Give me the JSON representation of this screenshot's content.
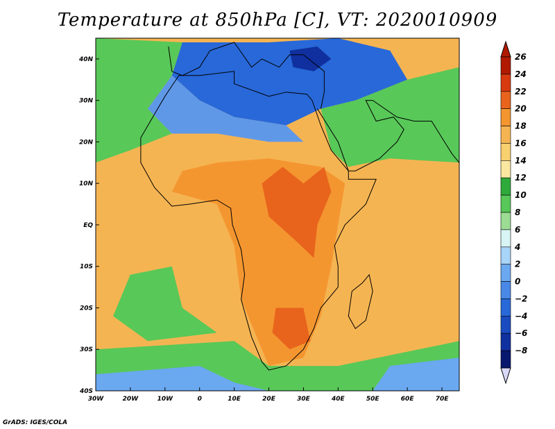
{
  "title": "Temperature at 850hPa [C], VT: 2020010909",
  "credit": "GrADS: IGES/COLA",
  "map": {
    "lon_range": [
      -30,
      75
    ],
    "lat_range": [
      -40,
      45
    ],
    "lon_ticks": [
      {
        "lon": -30,
        "label": "30W"
      },
      {
        "lon": -20,
        "label": "20W"
      },
      {
        "lon": -10,
        "label": "10W"
      },
      {
        "lon": 0,
        "label": "0"
      },
      {
        "lon": 10,
        "label": "10E"
      },
      {
        "lon": 20,
        "label": "20E"
      },
      {
        "lon": 30,
        "label": "30E"
      },
      {
        "lon": 40,
        "label": "40E"
      },
      {
        "lon": 50,
        "label": "50E"
      },
      {
        "lon": 60,
        "label": "60E"
      },
      {
        "lon": 70,
        "label": "70E"
      }
    ],
    "lat_ticks": [
      {
        "lat": 40,
        "label": "40N"
      },
      {
        "lat": 30,
        "label": "30N"
      },
      {
        "lat": 20,
        "label": "20N"
      },
      {
        "lat": 10,
        "label": "10N"
      },
      {
        "lat": 0,
        "label": "EQ"
      },
      {
        "lat": -10,
        "label": "10S"
      },
      {
        "lat": -20,
        "label": "20S"
      },
      {
        "lat": -30,
        "label": "30S"
      },
      {
        "lat": -40,
        "label": "40S"
      }
    ],
    "regions": [
      {
        "name": "cold-mediterranean",
        "color": "#2868d8",
        "lonlat": [
          [
            -5,
            44
          ],
          [
            20,
            44
          ],
          [
            40,
            45
          ],
          [
            55,
            42
          ],
          [
            60,
            35
          ],
          [
            45,
            30
          ],
          [
            35,
            28
          ],
          [
            25,
            24
          ],
          [
            10,
            26
          ],
          [
            0,
            30
          ],
          [
            -8,
            36
          ]
        ]
      },
      {
        "name": "deep-cold-aegean",
        "color": "#1030a0",
        "lonlat": [
          [
            26,
            42
          ],
          [
            34,
            43
          ],
          [
            38,
            40
          ],
          [
            33,
            37
          ],
          [
            27,
            38
          ]
        ]
      },
      {
        "name": "sahara-cool",
        "color": "#6098e8",
        "lonlat": [
          [
            -8,
            36
          ],
          [
            0,
            30
          ],
          [
            10,
            26
          ],
          [
            25,
            24
          ],
          [
            30,
            20
          ],
          [
            20,
            20
          ],
          [
            5,
            22
          ],
          [
            -8,
            22
          ],
          [
            -15,
            28
          ]
        ]
      },
      {
        "name": "north-atlantic-green",
        "color": "#58c858",
        "lonlat": [
          [
            -30,
            45
          ],
          [
            -5,
            44
          ],
          [
            -8,
            36
          ],
          [
            -15,
            28
          ],
          [
            -8,
            22
          ],
          [
            -20,
            18
          ],
          [
            -30,
            15
          ]
        ]
      },
      {
        "name": "arabia-green",
        "color": "#58c858",
        "lonlat": [
          [
            35,
            28
          ],
          [
            45,
            30
          ],
          [
            60,
            35
          ],
          [
            75,
            38
          ],
          [
            75,
            15
          ],
          [
            55,
            16
          ],
          [
            43,
            14
          ],
          [
            38,
            18
          ]
        ]
      },
      {
        "name": "sahel-warm",
        "color": "#f5b452",
        "lonlat": [
          [
            -20,
            18
          ],
          [
            -8,
            22
          ],
          [
            5,
            22
          ],
          [
            20,
            20
          ],
          [
            30,
            20
          ],
          [
            38,
            18
          ],
          [
            43,
            14
          ],
          [
            55,
            10
          ],
          [
            75,
            10
          ],
          [
            75,
            -40
          ],
          [
            -30,
            -40
          ],
          [
            -30,
            15
          ]
        ]
      },
      {
        "name": "central-africa-hot",
        "color": "#f49630",
        "lonlat": [
          [
            -5,
            13
          ],
          [
            5,
            15
          ],
          [
            20,
            16
          ],
          [
            35,
            14
          ],
          [
            42,
            10
          ],
          [
            40,
            0
          ],
          [
            38,
            -10
          ],
          [
            35,
            -22
          ],
          [
            30,
            -32
          ],
          [
            20,
            -34
          ],
          [
            12,
            -18
          ],
          [
            10,
            -5
          ],
          [
            5,
            5
          ],
          [
            -8,
            8
          ]
        ]
      },
      {
        "name": "east-africa-hottest",
        "color": "#e8641c",
        "lonlat": [
          [
            18,
            10
          ],
          [
            24,
            14
          ],
          [
            30,
            10
          ],
          [
            36,
            14
          ],
          [
            38,
            8
          ],
          [
            34,
            0
          ],
          [
            33,
            -8
          ],
          [
            28,
            -4
          ],
          [
            20,
            2
          ]
        ]
      },
      {
        "name": "south-africa-hottest",
        "color": "#e8641c",
        "lonlat": [
          [
            22,
            -20
          ],
          [
            30,
            -20
          ],
          [
            32,
            -28
          ],
          [
            26,
            -30
          ],
          [
            21,
            -26
          ]
        ]
      },
      {
        "name": "south-atlantic-green",
        "color": "#58c858",
        "lonlat": [
          [
            -20,
            -12
          ],
          [
            -8,
            -10
          ],
          [
            -5,
            -20
          ],
          [
            5,
            -26
          ],
          [
            -15,
            -28
          ],
          [
            -25,
            -22
          ]
        ]
      },
      {
        "name": "southern-ocean-green",
        "color": "#58c858",
        "lonlat": [
          [
            -30,
            -30
          ],
          [
            10,
            -28
          ],
          [
            20,
            -34
          ],
          [
            40,
            -34
          ],
          [
            75,
            -28
          ],
          [
            75,
            -40
          ],
          [
            -30,
            -40
          ]
        ]
      },
      {
        "name": "southern-ocean-cool",
        "color": "#6aa8f0",
        "lonlat": [
          [
            -30,
            -36
          ],
          [
            0,
            -34
          ],
          [
            10,
            -38
          ],
          [
            20,
            -40
          ],
          [
            -30,
            -40
          ]
        ]
      },
      {
        "name": "indian-ocean-cool",
        "color": "#6aa8f0",
        "lonlat": [
          [
            55,
            -34
          ],
          [
            75,
            -32
          ],
          [
            75,
            -40
          ],
          [
            50,
            -40
          ]
        ]
      }
    ],
    "coastline": [
      [
        -6,
        36
      ],
      [
        -10,
        31
      ],
      [
        -17,
        21
      ],
      [
        -17,
        15
      ],
      [
        -13,
        9
      ],
      [
        -8,
        4.5
      ],
      [
        -3,
        5
      ],
      [
        5,
        6
      ],
      [
        9,
        4
      ],
      [
        9.5,
        0
      ],
      [
        12,
        -6
      ],
      [
        13,
        -12
      ],
      [
        12,
        -18
      ],
      [
        15,
        -27
      ],
      [
        18,
        -33
      ],
      [
        20,
        -35
      ],
      [
        25,
        -34
      ],
      [
        30,
        -30
      ],
      [
        33,
        -25
      ],
      [
        35,
        -20
      ],
      [
        40,
        -15
      ],
      [
        40,
        -10
      ],
      [
        39,
        -5
      ],
      [
        42,
        0
      ],
      [
        48,
        5
      ],
      [
        51,
        11
      ],
      [
        43,
        11
      ],
      [
        43,
        13
      ],
      [
        38,
        18
      ],
      [
        35,
        24
      ],
      [
        32.5,
        30
      ],
      [
        31,
        31.5
      ],
      [
        25,
        32
      ],
      [
        20,
        31
      ],
      [
        15,
        32.5
      ],
      [
        10,
        34
      ],
      [
        10,
        37
      ],
      [
        0,
        36
      ],
      [
        -6,
        36
      ]
    ],
    "madagascar": [
      [
        49,
        -12
      ],
      [
        50,
        -16
      ],
      [
        48,
        -23
      ],
      [
        45,
        -25
      ],
      [
        43,
        -22
      ],
      [
        44,
        -16
      ],
      [
        47,
        -14
      ]
    ],
    "europe_coast": [
      [
        -9,
        43
      ],
      [
        -8,
        37
      ],
      [
        -5,
        36
      ],
      [
        0,
        38
      ],
      [
        3,
        42
      ],
      [
        10,
        44
      ],
      [
        15,
        38
      ],
      [
        18,
        40
      ],
      [
        23,
        38
      ],
      [
        26,
        41
      ],
      [
        30,
        41
      ],
      [
        36,
        37
      ],
      [
        36,
        32
      ],
      [
        35,
        28
      ]
    ],
    "arabia_coast": [
      [
        34,
        28
      ],
      [
        40,
        20
      ],
      [
        43,
        13
      ],
      [
        45,
        13
      ],
      [
        52,
        16
      ],
      [
        57,
        20
      ],
      [
        59,
        23
      ],
      [
        56,
        26
      ],
      [
        51,
        25
      ],
      [
        48,
        30
      ],
      [
        50,
        30
      ],
      [
        57,
        26
      ],
      [
        62,
        25
      ],
      [
        67,
        25
      ],
      [
        70,
        21
      ],
      [
        73,
        17
      ],
      [
        75,
        15
      ]
    ]
  },
  "colorbar": {
    "values": [
      "26",
      "24",
      "22",
      "20",
      "18",
      "16",
      "14",
      "12",
      "10",
      "8",
      "6",
      "4",
      "2",
      "0",
      "−2",
      "−4",
      "−6",
      "−8"
    ],
    "colors": [
      "#b01a00",
      "#d83a10",
      "#e8641c",
      "#f49630",
      "#f5b452",
      "#f8d070",
      "#fae8a0",
      "#2eaa3a",
      "#58c858",
      "#9cdc94",
      "#d8f4f4",
      "#a8d4f8",
      "#6aa8f0",
      "#4a88e8",
      "#2868d8",
      "#1a4cc0",
      "#1030a0",
      "#08186e"
    ]
  }
}
